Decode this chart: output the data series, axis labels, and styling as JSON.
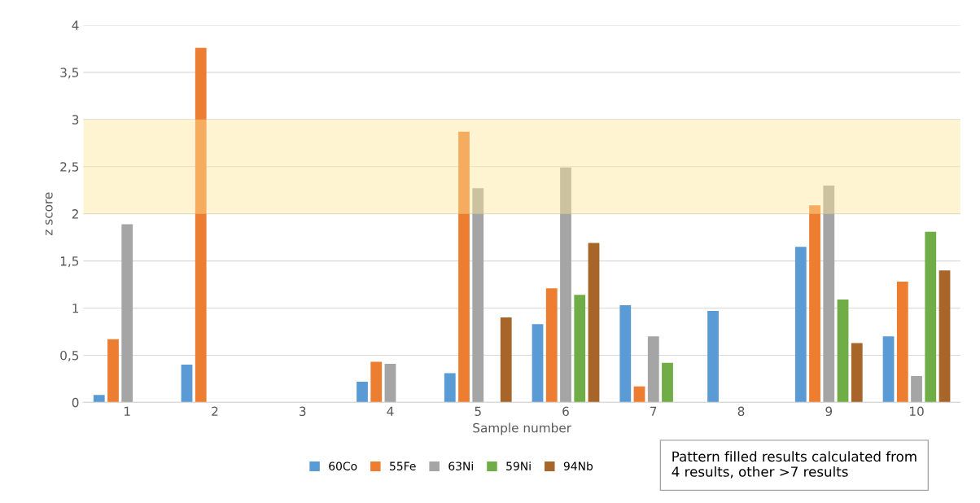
{
  "chart_data": {
    "type": "bar",
    "xlabel": "Sample number",
    "ylabel": "z score",
    "categories": [
      "1",
      "2",
      "3",
      "4",
      "5",
      "6",
      "7",
      "8",
      "9",
      "10"
    ],
    "series": [
      {
        "name": "60Co",
        "color": "#5b9bd5",
        "values": [
          0.08,
          0.4,
          null,
          0.22,
          0.31,
          0.83,
          1.03,
          0.97,
          1.65,
          0.7
        ]
      },
      {
        "name": "55Fe",
        "color": "#ed7d31",
        "values": [
          0.67,
          3.76,
          null,
          0.43,
          2.87,
          1.21,
          0.17,
          null,
          2.09,
          1.28
        ]
      },
      {
        "name": "63Ni",
        "color": "#a5a5a5",
        "values": [
          1.89,
          null,
          null,
          0.41,
          2.27,
          2.49,
          0.7,
          null,
          2.3,
          0.28
        ]
      },
      {
        "name": "59Ni",
        "color": "#70ad47",
        "values": [
          null,
          null,
          null,
          null,
          null,
          1.14,
          0.42,
          null,
          1.09,
          1.81
        ]
      },
      {
        "name": "94Nb",
        "color": "#a8652a",
        "values": [
          null,
          null,
          null,
          null,
          0.9,
          1.69,
          null,
          null,
          0.63,
          1.4
        ]
      }
    ],
    "ylim": [
      0,
      4
    ],
    "yticks": [
      0,
      {
        "value": 0.5,
        "label": "0,5"
      },
      1,
      {
        "value": 1.5,
        "label": "1,5"
      },
      2,
      {
        "value": 2.5,
        "label": "2,5"
      },
      3,
      {
        "value": 3.5,
        "label": "3,5"
      },
      4
    ],
    "bands": [
      {
        "axis": "y",
        "from": 2,
        "to": 3,
        "color": "#ffe699"
      }
    ],
    "grid": "y",
    "legend": "bottom",
    "annotations": [
      "Pattern filled results calculated from\n4 results, other >7 results"
    ]
  }
}
